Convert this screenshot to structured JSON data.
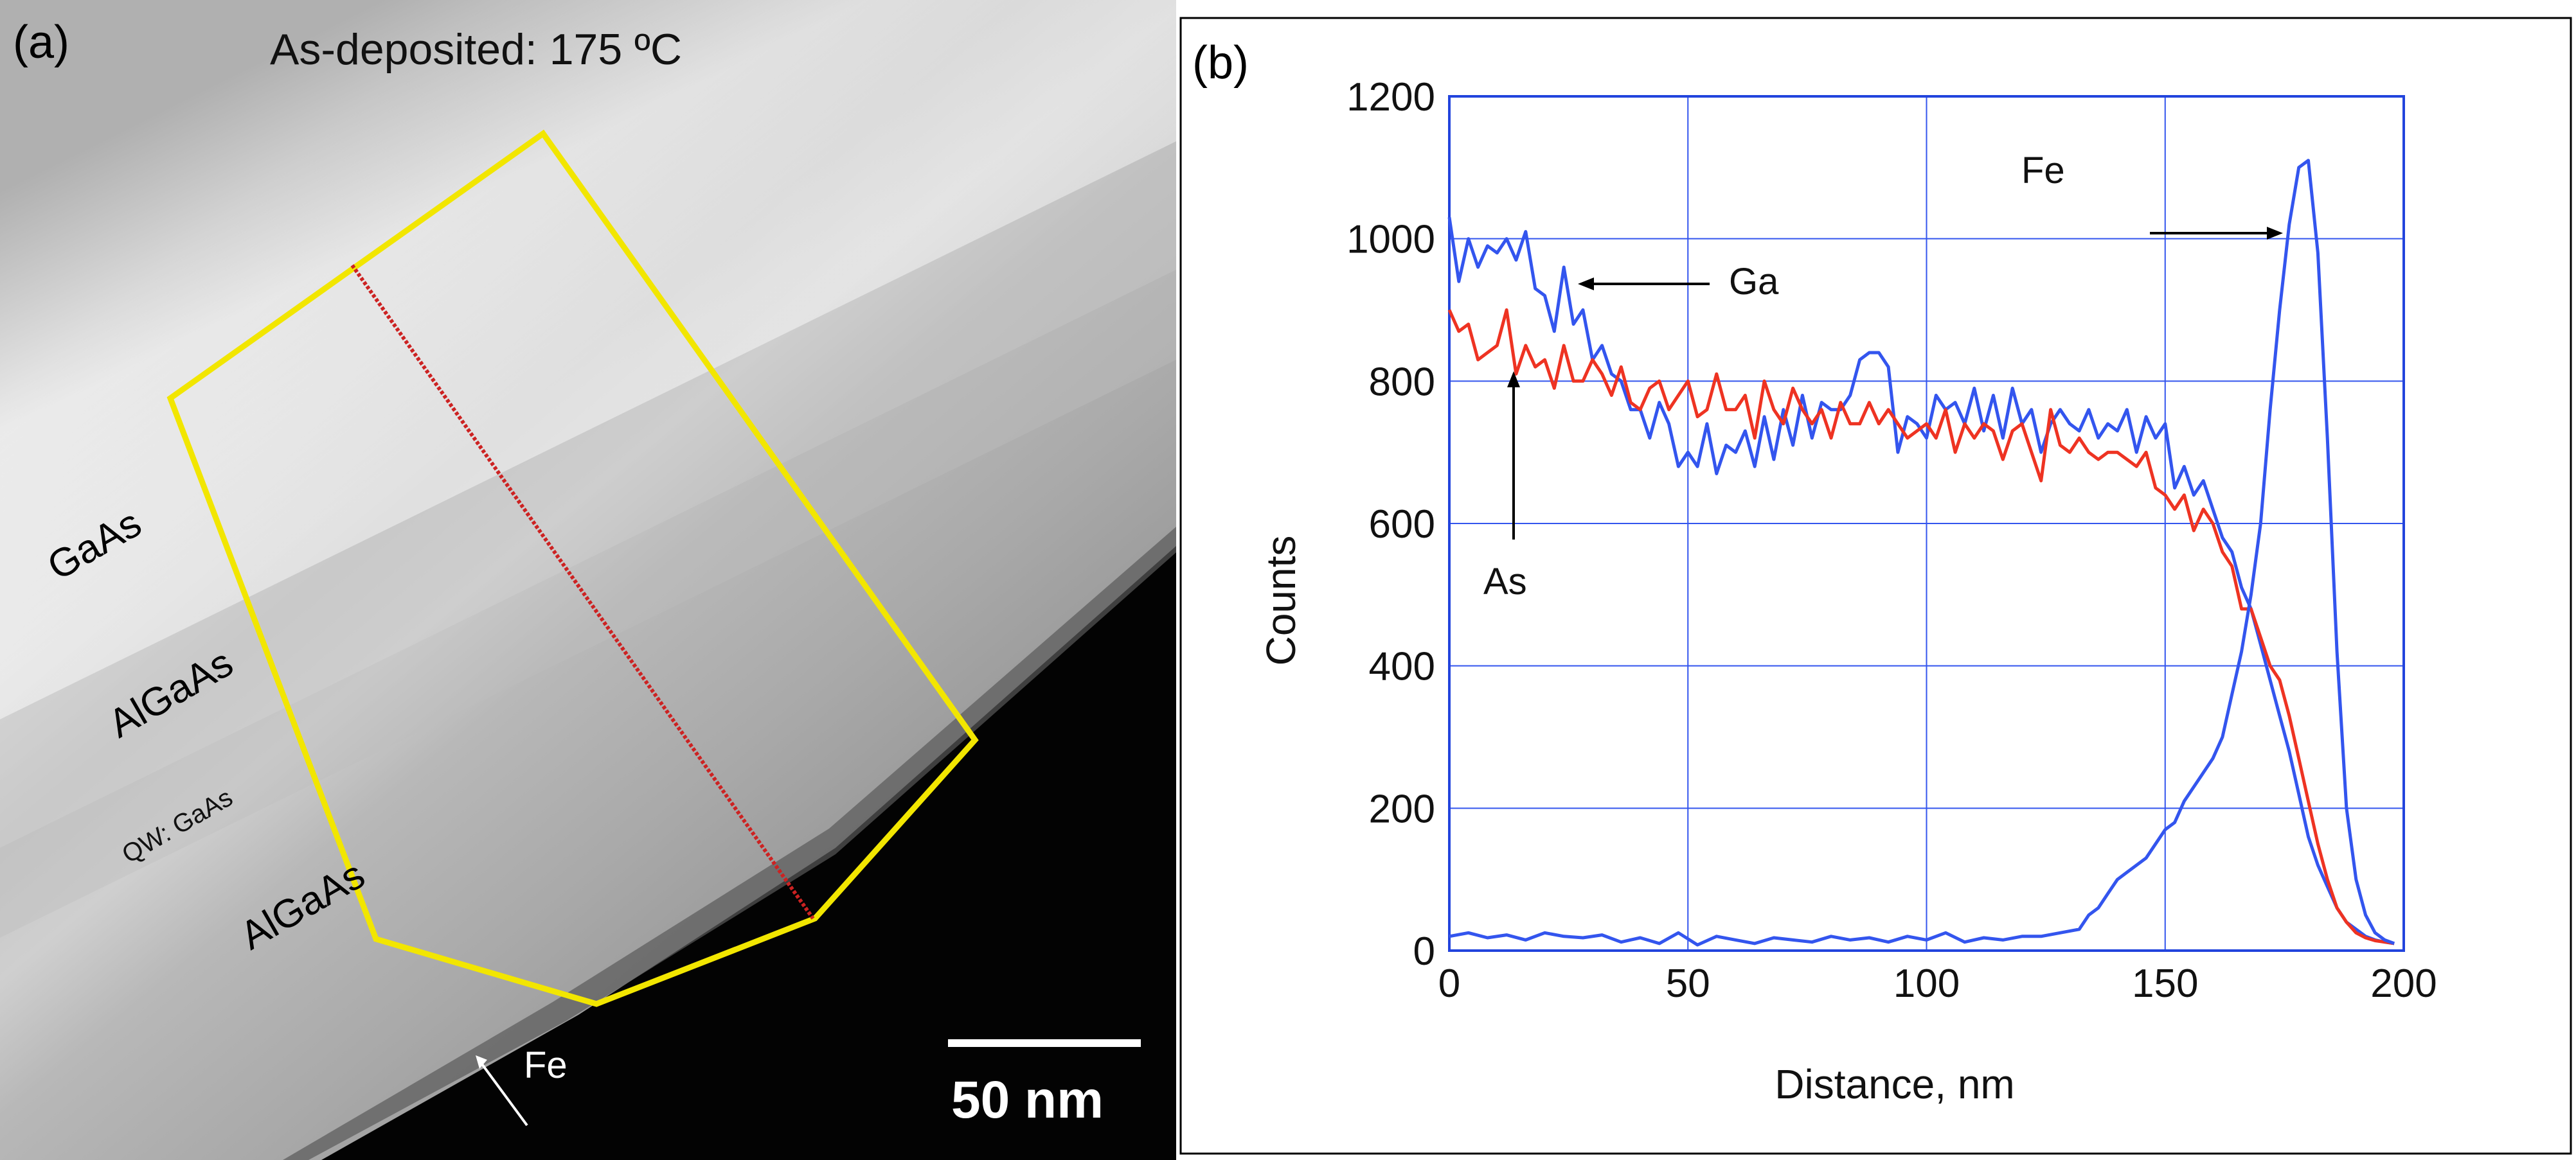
{
  "panel_a": {
    "label": "(a)",
    "title": "As-deposited: 175 ºC",
    "layers": [
      "GaAs",
      "AlGaAs",
      "QW: GaAs",
      "AlGaAs"
    ],
    "fe_label": "Fe",
    "scale_bar_label": "50 nm"
  },
  "chart_data": {
    "type": "line",
    "panel_label": "(b)",
    "title": "",
    "xlabel": "Distance, nm",
    "ylabel": "Counts",
    "xlim": [
      0,
      200
    ],
    "ylim": [
      0,
      1200
    ],
    "xticks": [
      0,
      50,
      100,
      150,
      200
    ],
    "yticks": [
      0,
      200,
      400,
      600,
      800,
      1000,
      1200
    ],
    "grid": true,
    "series": [
      {
        "name": "Ga",
        "color": "#3355ee",
        "x": [
          0,
          2,
          4,
          6,
          8,
          10,
          12,
          14,
          16,
          18,
          20,
          22,
          24,
          26,
          28,
          30,
          32,
          34,
          36,
          38,
          40,
          42,
          44,
          46,
          48,
          50,
          52,
          54,
          56,
          58,
          60,
          62,
          64,
          66,
          68,
          70,
          72,
          74,
          76,
          78,
          80,
          82,
          84,
          86,
          88,
          90,
          92,
          94,
          96,
          98,
          100,
          102,
          104,
          106,
          108,
          110,
          112,
          114,
          116,
          118,
          120,
          122,
          124,
          126,
          128,
          130,
          132,
          134,
          136,
          138,
          140,
          142,
          144,
          146,
          148,
          150,
          152,
          154,
          156,
          158,
          160,
          162,
          164,
          166,
          168,
          170,
          172,
          174,
          176,
          178,
          180,
          182,
          184,
          186,
          188,
          190,
          192,
          194,
          196,
          198
        ],
        "values": [
          1030,
          940,
          1000,
          960,
          990,
          980,
          1000,
          970,
          1010,
          930,
          920,
          870,
          960,
          880,
          900,
          830,
          850,
          810,
          800,
          760,
          760,
          720,
          770,
          740,
          680,
          700,
          680,
          740,
          670,
          710,
          700,
          730,
          680,
          750,
          690,
          760,
          710,
          780,
          720,
          770,
          760,
          760,
          780,
          830,
          840,
          840,
          820,
          700,
          750,
          740,
          720,
          780,
          760,
          770,
          740,
          790,
          730,
          780,
          720,
          790,
          740,
          760,
          700,
          740,
          760,
          740,
          730,
          760,
          720,
          740,
          730,
          760,
          700,
          750,
          720,
          740,
          650,
          680,
          640,
          660,
          620,
          580,
          560,
          510,
          480,
          430,
          380,
          330,
          280,
          220,
          160,
          120,
          90,
          60,
          40,
          30,
          20,
          15,
          12,
          10
        ]
      },
      {
        "name": "As",
        "color": "#ee3322",
        "x": [
          0,
          2,
          4,
          6,
          8,
          10,
          12,
          14,
          16,
          18,
          20,
          22,
          24,
          26,
          28,
          30,
          32,
          34,
          36,
          38,
          40,
          42,
          44,
          46,
          48,
          50,
          52,
          54,
          56,
          58,
          60,
          62,
          64,
          66,
          68,
          70,
          72,
          74,
          76,
          78,
          80,
          82,
          84,
          86,
          88,
          90,
          92,
          94,
          96,
          98,
          100,
          102,
          104,
          106,
          108,
          110,
          112,
          114,
          116,
          118,
          120,
          122,
          124,
          126,
          128,
          130,
          132,
          134,
          136,
          138,
          140,
          142,
          144,
          146,
          148,
          150,
          152,
          154,
          156,
          158,
          160,
          162,
          164,
          166,
          168,
          170,
          172,
          174,
          176,
          178,
          180,
          182,
          184,
          186,
          188,
          190,
          192,
          194,
          196,
          198
        ],
        "values": [
          900,
          870,
          880,
          830,
          840,
          850,
          900,
          810,
          850,
          820,
          830,
          790,
          850,
          800,
          800,
          830,
          810,
          780,
          820,
          770,
          760,
          790,
          800,
          760,
          780,
          800,
          750,
          760,
          810,
          760,
          760,
          780,
          720,
          800,
          760,
          740,
          790,
          760,
          740,
          760,
          720,
          770,
          740,
          740,
          770,
          740,
          760,
          740,
          720,
          730,
          740,
          720,
          760,
          700,
          740,
          720,
          740,
          730,
          690,
          730,
          740,
          700,
          660,
          760,
          710,
          700,
          720,
          700,
          690,
          700,
          700,
          690,
          680,
          700,
          650,
          640,
          620,
          640,
          590,
          620,
          600,
          560,
          540,
          480,
          480,
          440,
          400,
          380,
          330,
          270,
          210,
          150,
          100,
          60,
          40,
          25,
          18,
          14,
          12,
          10
        ]
      },
      {
        "name": "Fe",
        "color": "#3355ee",
        "x": [
          0,
          4,
          8,
          12,
          16,
          20,
          24,
          28,
          32,
          36,
          40,
          44,
          48,
          52,
          56,
          60,
          64,
          68,
          72,
          76,
          80,
          84,
          88,
          92,
          96,
          100,
          104,
          108,
          112,
          116,
          120,
          124,
          128,
          132,
          134,
          136,
          138,
          140,
          142,
          144,
          146,
          148,
          150,
          152,
          154,
          156,
          158,
          160,
          162,
          164,
          166,
          168,
          170,
          172,
          174,
          176,
          178,
          180,
          182,
          184,
          186,
          188,
          190,
          192,
          194,
          196,
          198
        ],
        "values": [
          20,
          25,
          18,
          22,
          15,
          25,
          20,
          18,
          22,
          12,
          18,
          10,
          25,
          8,
          20,
          15,
          10,
          18,
          15,
          12,
          20,
          15,
          18,
          12,
          20,
          15,
          25,
          12,
          18,
          15,
          20,
          20,
          25,
          30,
          50,
          60,
          80,
          100,
          110,
          120,
          130,
          150,
          170,
          180,
          210,
          230,
          250,
          270,
          300,
          360,
          420,
          500,
          600,
          760,
          900,
          1020,
          1100,
          1110,
          980,
          720,
          420,
          200,
          100,
          50,
          25,
          15,
          10
        ]
      }
    ],
    "annotations": [
      "Ga",
      "As",
      "Fe"
    ]
  },
  "colors": {
    "frame": "#2244dd",
    "grid": "#3355ee",
    "annotation": "#000000"
  }
}
